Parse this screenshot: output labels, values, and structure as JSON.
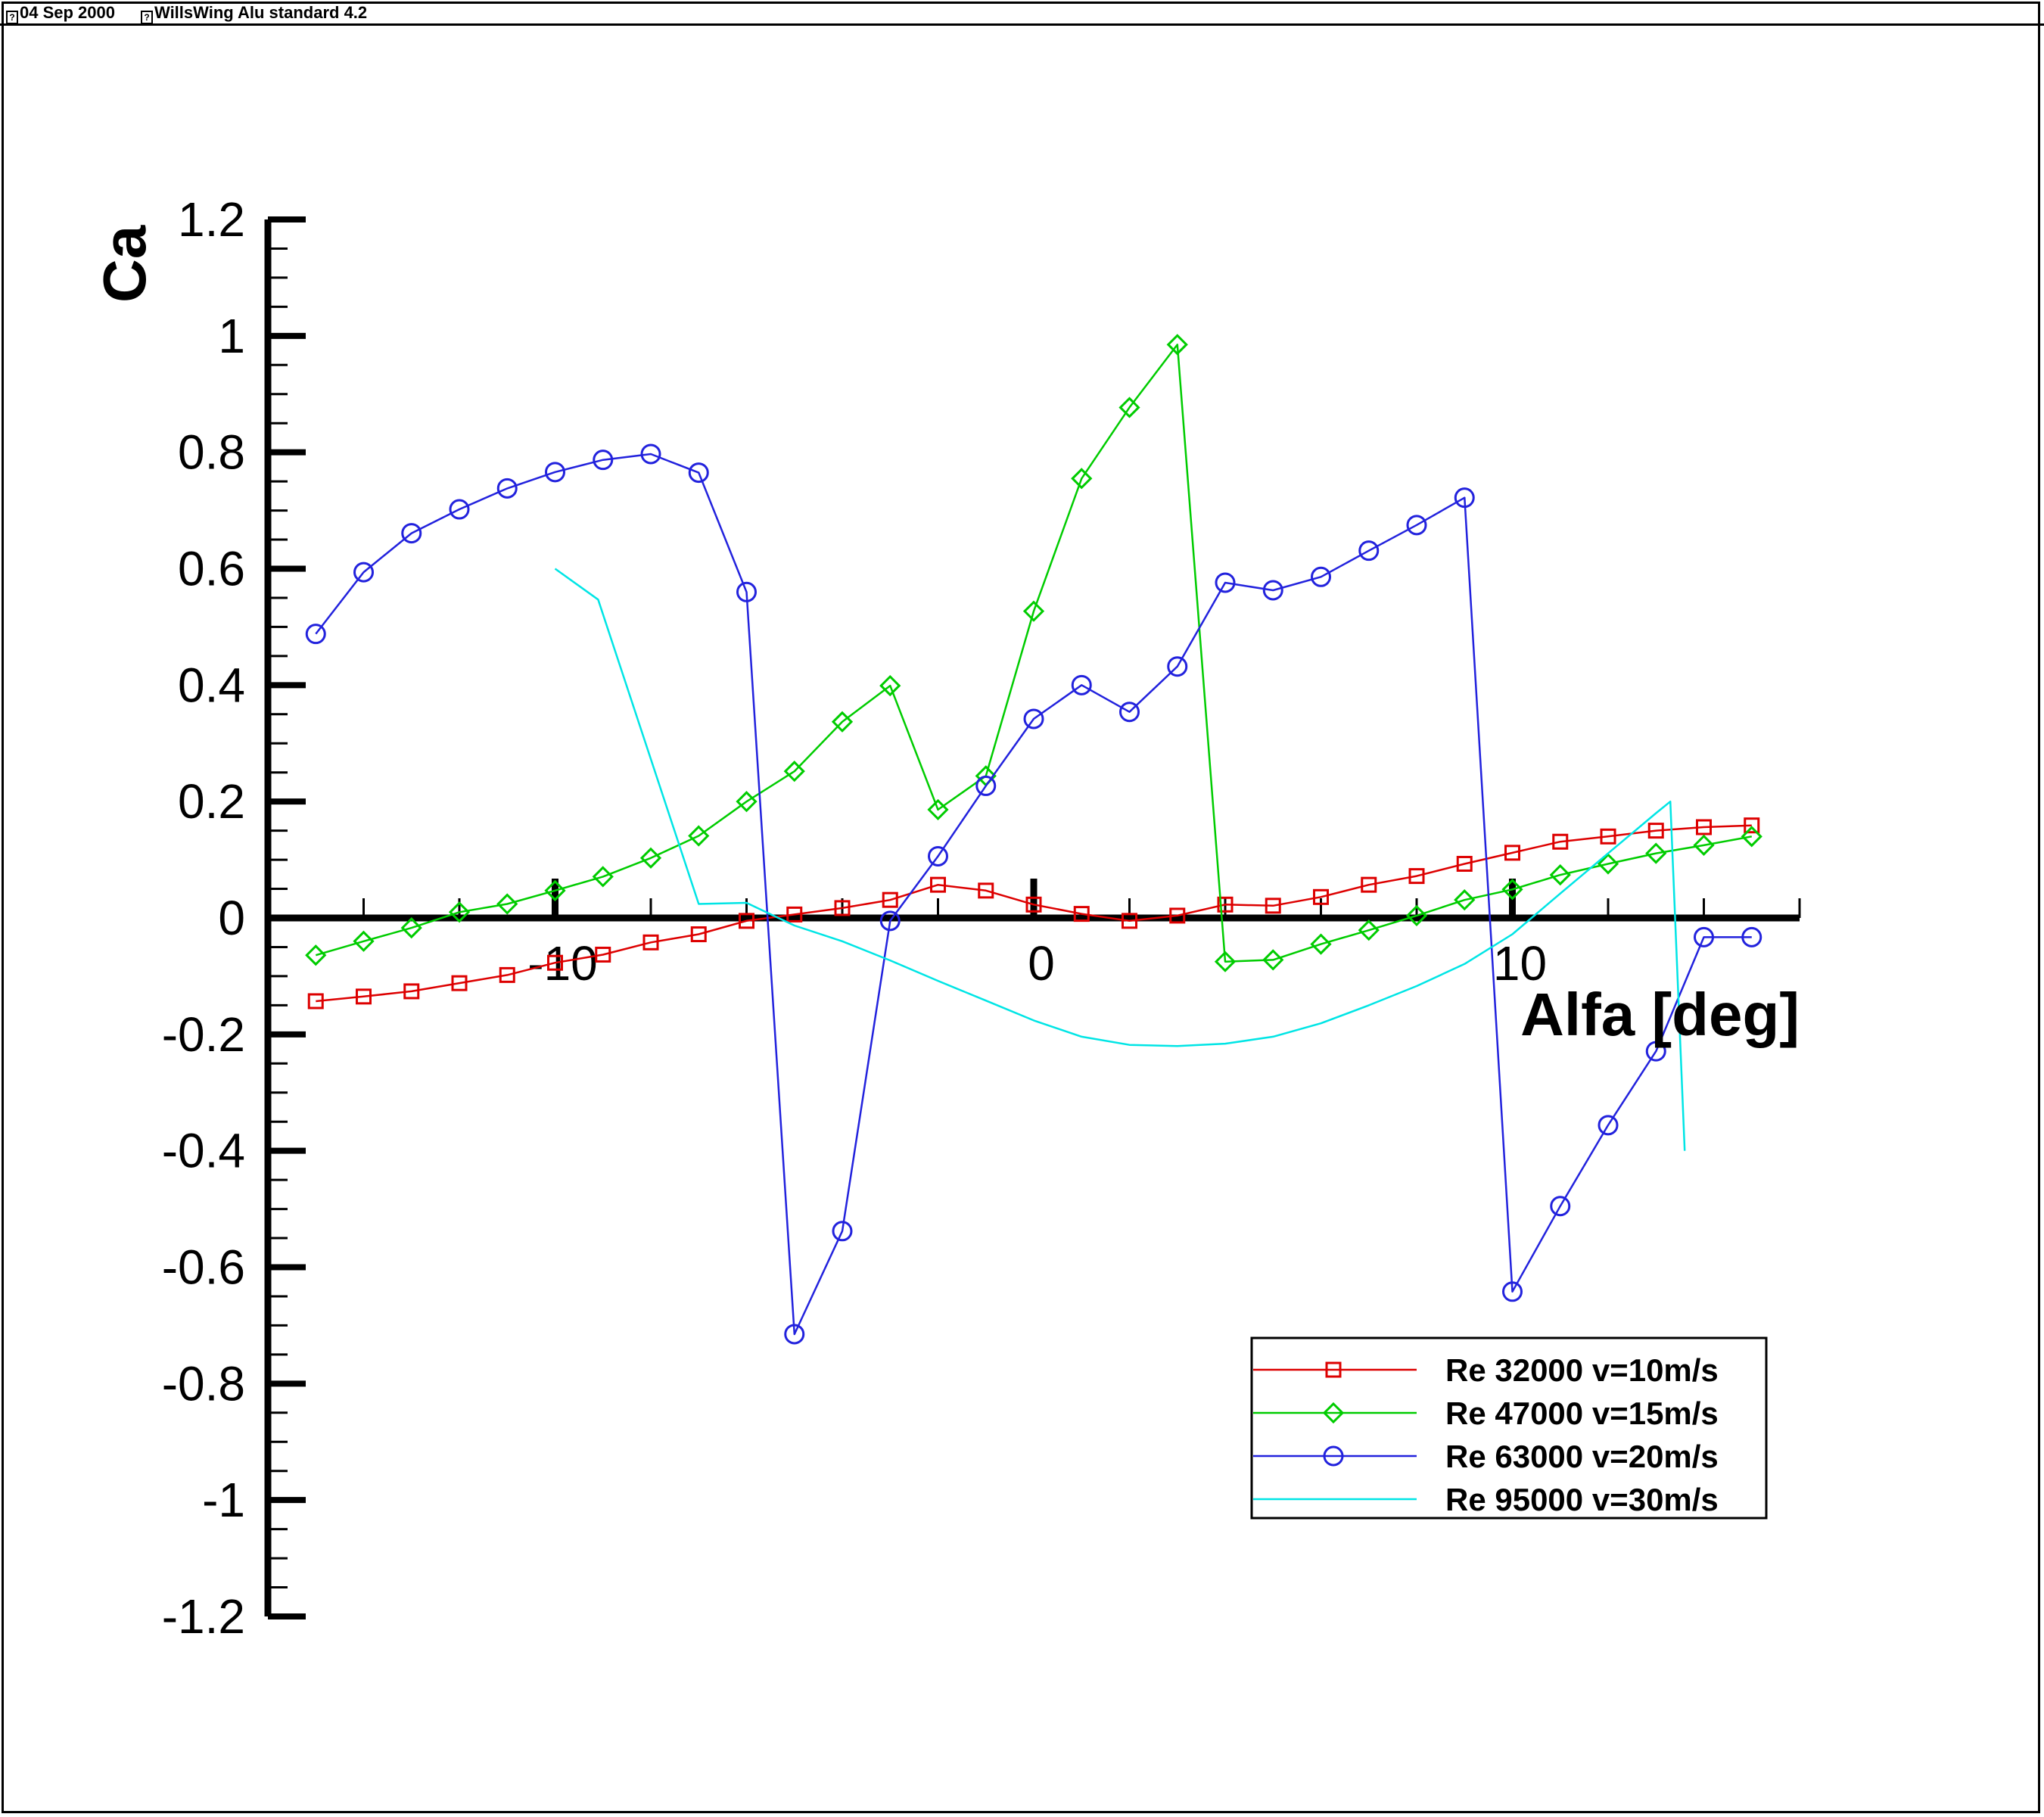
{
  "header": {
    "date": "04 Sep 2000",
    "title": "WillsWing Alu standard 4.2",
    "icon": "missing-glyph-box"
  },
  "chart_data": {
    "type": "line",
    "title": "",
    "xlabel": "Alfa [deg]",
    "ylabel": "Ca",
    "xlim": [
      -16,
      16
    ],
    "ylim": [
      -1.2,
      1.2
    ],
    "xticks": [
      -10,
      0,
      10
    ],
    "xtick_labels": [
      "-10",
      "0",
      "10"
    ],
    "yticks": [
      -1.2,
      -1,
      -0.8,
      -0.6,
      -0.4,
      -0.2,
      0,
      0.2,
      0.4,
      0.6,
      0.8,
      1,
      1.2
    ],
    "ytick_labels": [
      "-1.2",
      "-1",
      "-0.8",
      "-0.6",
      "-0.4",
      "-0.2",
      "0",
      "0.2",
      "0.4",
      "0.6",
      "0.8",
      "1",
      "1.2"
    ],
    "grid": false,
    "legend_position": "bottom-right",
    "series": [
      {
        "name": "Re 32000 v=10m/s",
        "color": "#dd0000",
        "marker": "square",
        "x": [
          -15,
          -14,
          -13,
          -12,
          -11,
          -10,
          -9,
          -8,
          -7,
          -6,
          -5,
          -4,
          -3,
          -2,
          -1,
          0,
          1,
          2,
          3,
          4,
          5,
          6,
          7,
          8,
          9,
          10,
          11,
          12,
          13,
          14,
          15
        ],
        "y": [
          -0.143,
          -0.135,
          -0.126,
          -0.112,
          -0.098,
          -0.077,
          -0.063,
          -0.042,
          -0.028,
          -0.005,
          0.006,
          0.017,
          0.031,
          0.057,
          0.047,
          0.023,
          0.007,
          -0.005,
          0.004,
          0.023,
          0.021,
          0.036,
          0.057,
          0.072,
          0.093,
          0.112,
          0.131,
          0.14,
          0.15,
          0.156,
          0.159
        ]
      },
      {
        "name": "Re 47000 v=15m/s",
        "color": "#00cc00",
        "marker": "diamond",
        "x": [
          -15,
          -14,
          -13,
          -12,
          -11,
          -10,
          -9,
          -8,
          -7,
          -6,
          -5,
          -4,
          -3,
          -2,
          -1,
          0,
          1,
          2,
          3,
          4,
          5,
          6,
          7,
          8,
          9,
          10,
          11,
          12,
          13,
          14,
          15
        ],
        "y": [
          -0.064,
          -0.04,
          -0.017,
          0.01,
          0.024,
          0.047,
          0.071,
          0.103,
          0.141,
          0.2,
          0.252,
          0.337,
          0.399,
          0.186,
          0.244,
          0.527,
          0.755,
          0.877,
          0.985,
          -0.075,
          -0.072,
          -0.045,
          -0.021,
          0.004,
          0.031,
          0.049,
          0.074,
          0.093,
          0.111,
          0.125,
          0.14
        ]
      },
      {
        "name": "Re 63000 v=20m/s",
        "color": "#2222dd",
        "marker": "circle",
        "x": [
          -15,
          -14,
          -13,
          -12,
          -11,
          -10,
          -9,
          -8,
          -7,
          -6,
          -5,
          -4,
          -3,
          -2,
          -1,
          0,
          1,
          2,
          3,
          4,
          5,
          6,
          7,
          8,
          9,
          10,
          11,
          12,
          13,
          14,
          15
        ],
        "y": [
          0.488,
          0.594,
          0.661,
          0.702,
          0.738,
          0.766,
          0.787,
          0.797,
          0.765,
          0.56,
          -0.715,
          -0.538,
          -0.005,
          0.106,
          0.227,
          0.342,
          0.4,
          0.354,
          0.432,
          0.576,
          0.563,
          0.586,
          0.631,
          0.675,
          0.722,
          -0.642,
          -0.495,
          -0.356,
          -0.229,
          -0.033,
          -0.033
        ]
      },
      {
        "name": "Re 95000 v=30m/s",
        "color": "#00e5e5",
        "marker": "none",
        "x": [
          -10,
          -9.1,
          -7,
          -6,
          -5,
          -4,
          -3,
          -2,
          -1,
          0,
          1,
          2,
          3,
          4,
          5,
          6,
          7,
          8,
          9,
          10,
          11,
          12,
          13,
          13.3,
          13.6
        ],
        "y": [
          0.6,
          0.547,
          0.024,
          0.026,
          -0.013,
          -0.04,
          -0.073,
          -0.108,
          -0.142,
          -0.176,
          -0.204,
          -0.218,
          -0.22,
          -0.216,
          -0.204,
          -0.181,
          -0.15,
          -0.117,
          -0.079,
          -0.028,
          0.042,
          0.111,
          0.18,
          0.2,
          -0.4
        ]
      }
    ]
  }
}
